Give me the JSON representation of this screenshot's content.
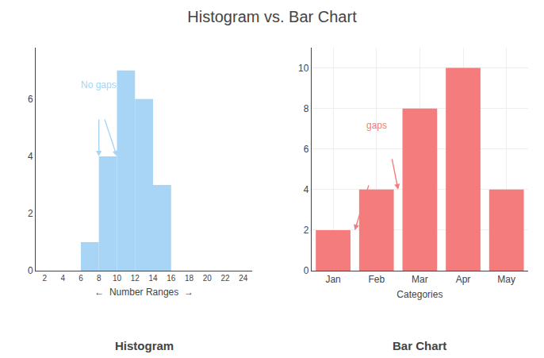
{
  "title": "Histogram vs. Bar Chart",
  "chart_data": [
    {
      "type": "histogram",
      "title": "Histogram",
      "xlabel": "←  Number Ranges  →",
      "bins": [
        6,
        8,
        10,
        12,
        14,
        16
      ],
      "values": [
        1,
        4,
        7,
        6,
        3
      ],
      "color": "#a8d4f5",
      "xlim": [
        1,
        25
      ],
      "xticks": [
        2,
        4,
        6,
        8,
        10,
        12,
        14,
        16,
        18,
        20,
        22,
        24
      ],
      "ylim": [
        0,
        7.8
      ],
      "yticks": [
        0,
        2,
        4,
        6
      ],
      "grid": false,
      "annotations": [
        "No gaps"
      ]
    },
    {
      "type": "bar",
      "title": "Bar Chart",
      "xlabel": "Categories",
      "categories": [
        "Jan",
        "Feb",
        "Mar",
        "Apr",
        "May"
      ],
      "values": [
        2,
        4,
        8,
        10,
        4
      ],
      "color": "#f47c7c",
      "ylim": [
        0,
        11
      ],
      "yticks": [
        0,
        2,
        4,
        6,
        8,
        10
      ],
      "grid": true,
      "annotations": [
        "gaps"
      ]
    }
  ]
}
